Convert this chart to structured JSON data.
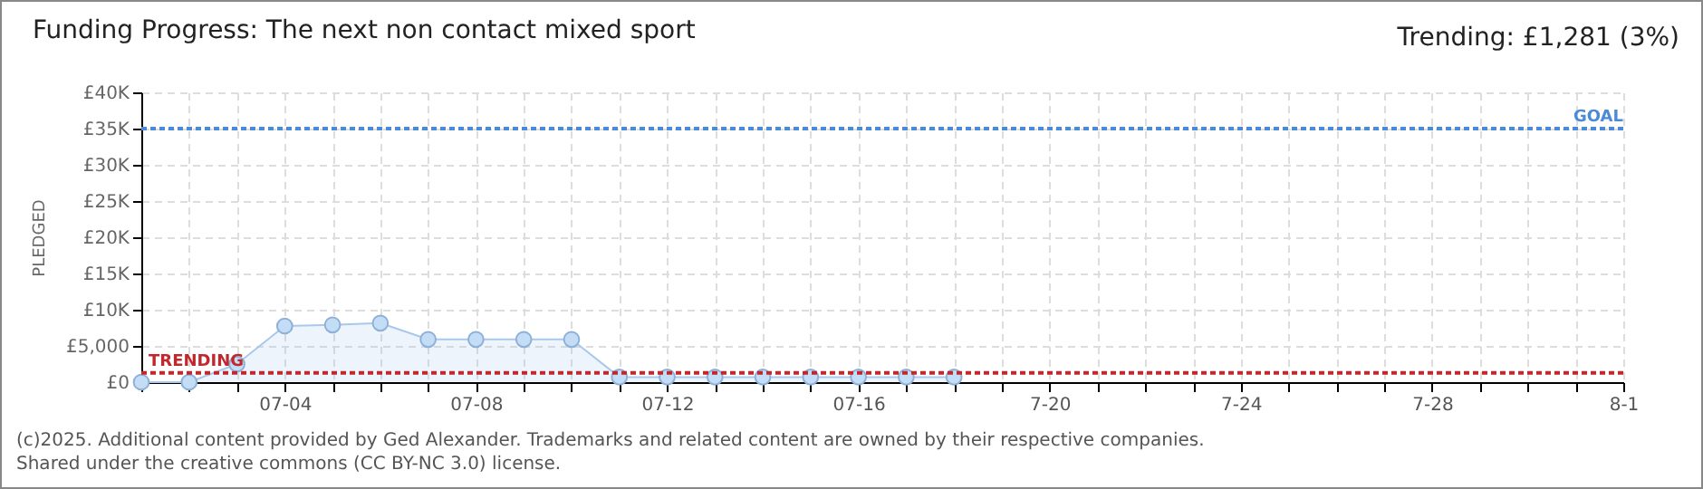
{
  "chart_data": {
    "type": "area",
    "title": "Funding Progress: The next non contact mixed sport",
    "subtitle": "Trending:  £1,281 (3%)",
    "ylabel": "PLEDGED",
    "x": [
      "--07-01",
      "--07-02",
      "--07-03",
      "--07-04",
      "--07-05",
      "--07-06",
      "--07-07",
      "--07-08",
      "--07-09",
      "--07-10",
      "--07-11",
      "--07-12",
      "--07-13",
      "--07-14",
      "--07-15",
      "--07-16",
      "--07-17",
      "--07-18"
    ],
    "series": [
      {
        "color": "#a9c8ec",
        "values": [
          0,
          0,
          2500,
          7750,
          7900,
          8150,
          5900,
          5900,
          5900,
          5900,
          700,
          700,
          700,
          700,
          700,
          700,
          700,
          700
        ]
      }
    ],
    "xlim": [
      "--07-01",
      "--08-01"
    ],
    "xticks": [
      {
        "value": "--07-01",
        "label": null
      },
      {
        "value": "--07-02",
        "label": null
      },
      {
        "value": "--07-03",
        "label": null
      },
      {
        "value": "--07-04",
        "label": "07-04"
      },
      {
        "value": "--07-05",
        "label": null
      },
      {
        "value": "--07-06",
        "label": null
      },
      {
        "value": "--07-07",
        "label": null
      },
      {
        "value": "--07-08",
        "label": "07-08"
      },
      {
        "value": "--07-09",
        "label": null
      },
      {
        "value": "--07-10",
        "label": null
      },
      {
        "value": "--07-11",
        "label": null
      },
      {
        "value": "--07-12",
        "label": "07-12"
      },
      {
        "value": "--07-13",
        "label": null
      },
      {
        "value": "--07-14",
        "label": null
      },
      {
        "value": "--07-15",
        "label": null
      },
      {
        "value": "--07-16",
        "label": "07-16"
      },
      {
        "value": "--07-17",
        "label": null
      },
      {
        "value": "--07-18",
        "label": null
      },
      {
        "value": "--07-19",
        "label": null
      },
      {
        "value": "--07-20",
        "label": "7-20"
      },
      {
        "value": "--07-21",
        "label": null
      },
      {
        "value": "--07-22",
        "label": null
      },
      {
        "value": "--07-23",
        "label": null
      },
      {
        "value": "--07-24",
        "label": "7-24"
      },
      {
        "value": "--07-25",
        "label": null
      },
      {
        "value": "--07-26",
        "label": null
      },
      {
        "value": "--07-27",
        "label": null
      },
      {
        "value": "--07-28",
        "label": "7-28"
      },
      {
        "value": "--07-29",
        "label": null
      },
      {
        "value": "--07-30",
        "label": null
      },
      {
        "value": "--07-31",
        "label": null
      },
      {
        "value": "--08-01",
        "label": "8-1"
      }
    ],
    "ylim": [
      0,
      40000
    ],
    "yticks": [
      {
        "value": 0,
        "label": "£0"
      },
      {
        "value": 5000,
        "label": "£5,000"
      },
      {
        "value": 10000,
        "label": "£10K"
      },
      {
        "value": 15000,
        "label": "£15K"
      },
      {
        "value": 20000,
        "label": "£20K"
      },
      {
        "value": 25000,
        "label": "£25K"
      },
      {
        "value": 30000,
        "label": "£30K"
      },
      {
        "value": 35000,
        "label": "£35K"
      },
      {
        "value": 40000,
        "label": "£40K"
      }
    ],
    "ref_lines": [
      {
        "axis": "y",
        "value": 35000,
        "label": "GOAL",
        "color": "#4a8ad8",
        "line_style": "dotted"
      },
      {
        "axis": "y",
        "value": 1281,
        "label": "TRENDING",
        "color": "#c0282d",
        "line_style": "dotted"
      }
    ],
    "grid": true,
    "marker": "circle",
    "line_style": "solid",
    "annotations": [
      "(c)2025. Additional content provided by Ged Alexander. Trademarks and related content are owned by their respective companies.",
      "Shared under the creative commons (CC BY-NC 3.0) license."
    ]
  }
}
